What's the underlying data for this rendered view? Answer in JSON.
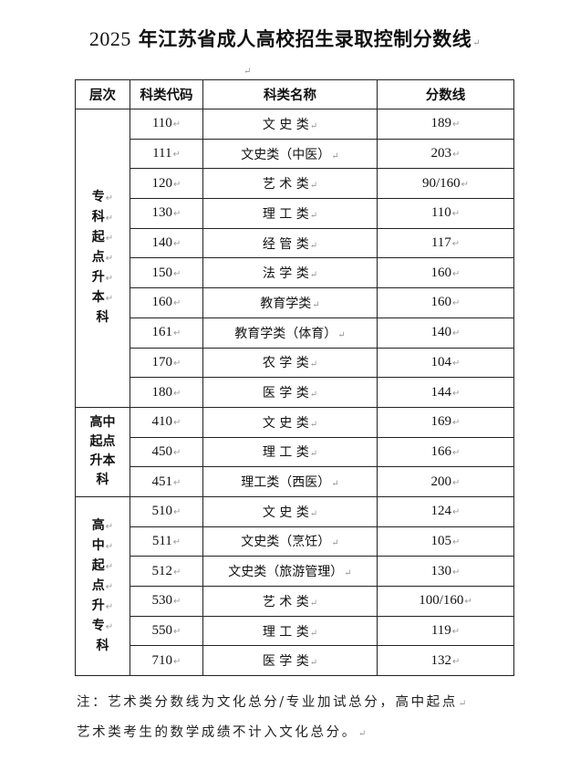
{
  "title": {
    "year": "2025",
    "text": "年江苏省成人高校招生录取控制分数线"
  },
  "table": {
    "headers": [
      "层次",
      "科类代码",
      "科类名称",
      "分数线"
    ],
    "groups": [
      {
        "label": "专\n科\n起\n点\n升\n本\n科",
        "rows": [
          {
            "code": "110",
            "name": "文 史 类",
            "score": "189"
          },
          {
            "code": "111",
            "name": "文史类（中医）",
            "score": "203"
          },
          {
            "code": "120",
            "name": "艺 术 类",
            "score": "90/160"
          },
          {
            "code": "130",
            "name": "理 工 类",
            "score": "110"
          },
          {
            "code": "140",
            "name": "经 管 类",
            "score": "117"
          },
          {
            "code": "150",
            "name": "法 学 类",
            "score": "160"
          },
          {
            "code": "160",
            "name": "教育学类",
            "score": "160"
          },
          {
            "code": "161",
            "name": "教育学类（体育）",
            "score": "140"
          },
          {
            "code": "170",
            "name": "农 学 类",
            "score": "104"
          },
          {
            "code": "180",
            "name": "医 学 类",
            "score": "144"
          }
        ]
      },
      {
        "label": "高中\n起点\n升本\n科",
        "rows": [
          {
            "code": "410",
            "name": "文 史 类",
            "score": "169"
          },
          {
            "code": "450",
            "name": "理 工 类",
            "score": "166"
          },
          {
            "code": "451",
            "name": "理工类（西医）",
            "score": "200"
          }
        ]
      },
      {
        "label": "高\n中\n起\n点\n升\n专\n科",
        "rows": [
          {
            "code": "510",
            "name": "文 史 类",
            "score": "124"
          },
          {
            "code": "511",
            "name": "文史类（烹饪）",
            "score": "105"
          },
          {
            "code": "512",
            "name": "文史类（旅游管理）",
            "score": "130"
          },
          {
            "code": "530",
            "name": "艺 术 类",
            "score": "100/160"
          },
          {
            "code": "550",
            "name": "理 工 类",
            "score": "119"
          },
          {
            "code": "710",
            "name": "医 学 类",
            "score": "132"
          }
        ]
      }
    ]
  },
  "notes": [
    "注：艺术类分数线为文化总分/专业加试总分，高中起点",
    "艺术类考生的数学成绩不计入文化总分。"
  ]
}
